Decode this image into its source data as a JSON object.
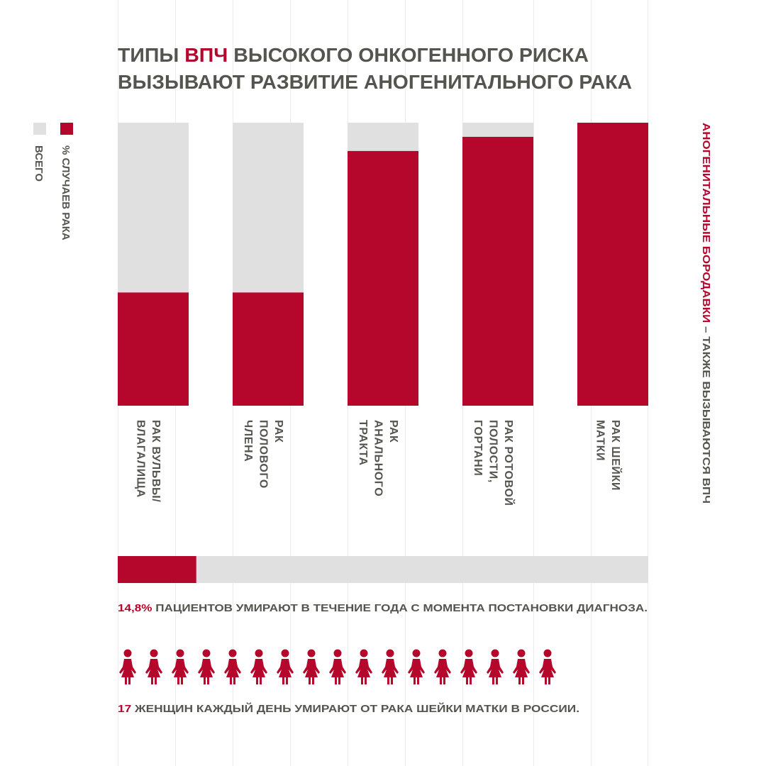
{
  "chart_data": {
    "type": "bar",
    "title": [
      [
        "ТИПЫ ",
        "ВПЧ",
        " ВЫСОКОГО ОНКОГЕННОГО РИСКА"
      ],
      [
        "ВЫЗЫВАЮТ РАЗВИТИЕ АНОГЕНИТАЛЬНОГО РАКА"
      ]
    ],
    "categories": [
      [
        "РАК ВУЛЬВЫ/",
        "ВЛАГАЛИЩА"
      ],
      [
        "РАК",
        "ПОЛОВОГО",
        "ЧЛЕНА"
      ],
      [
        "РАК",
        "АНАЛЬНОГО",
        "ТРАКТА"
      ],
      [
        "РАК РОТОВОЙ",
        "ПОЛОСТИ,",
        "ГОРТАНИ"
      ],
      [
        "РАК ШЕЙКИ",
        "МАТКИ"
      ]
    ],
    "series": [
      {
        "name": "ВСЕГО",
        "color": "#e0e0e0",
        "values": [
          100,
          100,
          100,
          100,
          100
        ]
      },
      {
        "name": "% СЛУЧАЕВ РАКА",
        "color": "#b5062c",
        "values": [
          40,
          40,
          90,
          95,
          100
        ]
      }
    ],
    "ylim": [
      0,
      100
    ],
    "note": [
      "АНОГЕНИТАЛЬНЫЕ БОРОДАВКИ",
      " – ТАКЖЕ ВЫЗЫВАЮТСЯ ВПЧ"
    ]
  },
  "patients": {
    "value": 14.8,
    "value_label": "14,8%",
    "xlim": [
      0,
      100
    ],
    "text": " ПАЦИЕНТОВ УМИРАЮТ В ТЕЧЕНИЕ ГОДА С МОМЕНТА ПОСТАНОВКИ ДИАГНОЗА."
  },
  "women": {
    "value": 17,
    "value_label": "17",
    "text": " ЖЕНЩИН КАЖДЫЙ ДЕНЬ УМИРАЮТ ОТ РАКА ШЕЙКИ МАТКИ В РОССИИ."
  }
}
